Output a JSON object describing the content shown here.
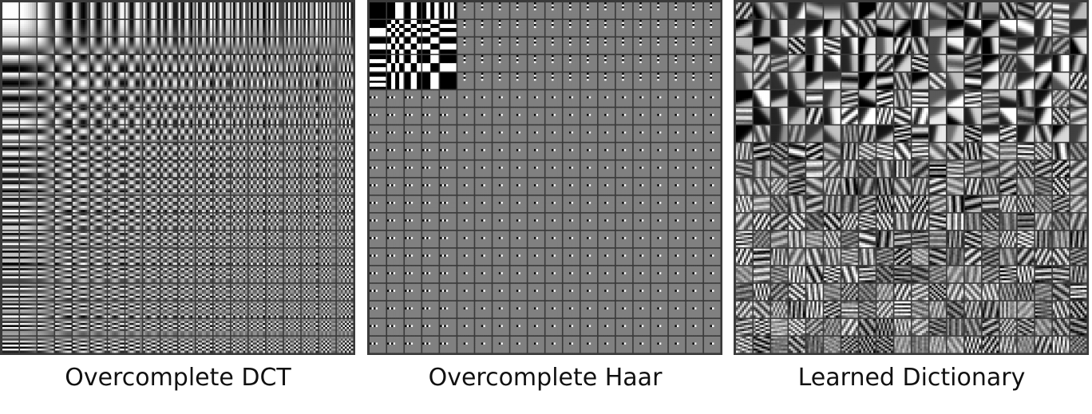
{
  "figure": {
    "panels": [
      {
        "id": "dct",
        "caption": "Overcomplete DCT",
        "kind": "dct",
        "grid": 20
      },
      {
        "id": "haar",
        "caption": "Overcomplete Haar",
        "kind": "haar",
        "grid": 20
      },
      {
        "id": "learned",
        "caption": "Learned Dictionary",
        "kind": "learned",
        "grid": 20
      }
    ],
    "colors": {
      "border": "#3a3a3a",
      "haar_gray": "#808080"
    }
  }
}
